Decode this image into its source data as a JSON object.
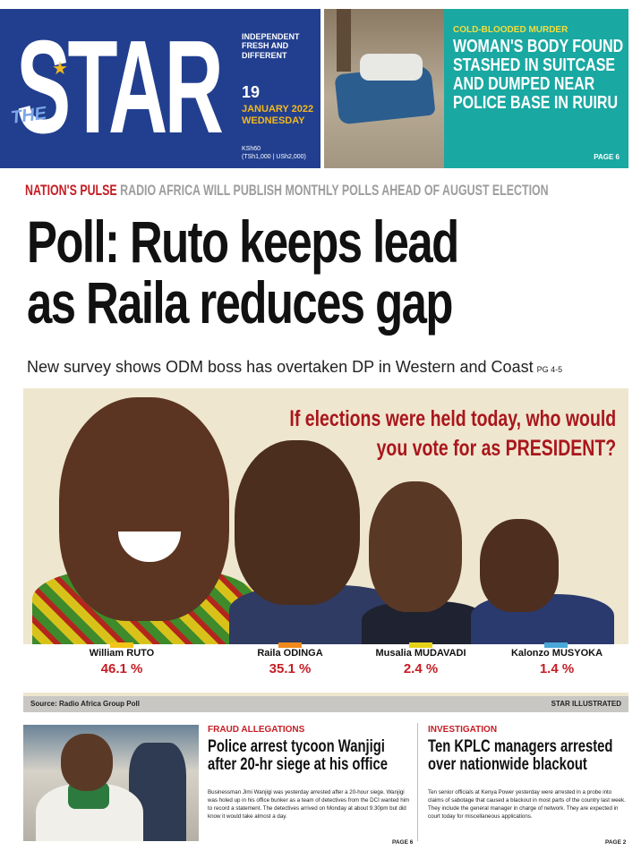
{
  "masthead": {
    "logo_the": "THE",
    "logo_star": "STAR",
    "tagline": "INDEPENDENT FRESH AND DIFFERENT",
    "date_day": "19",
    "date_month": "JANUARY 2022",
    "date_weekday": "WEDNESDAY",
    "price_ksh": "KSh60",
    "price_other": "(TSh1,000 | USh2,000)"
  },
  "teaser": {
    "kicker": "COLD-BLOODED MURDER",
    "headline": "WOMAN'S BODY FOUND STASHED IN SUITCASE AND DUMPED NEAR POLICE BASE IN RUIRU",
    "page": "PAGE 6"
  },
  "main": {
    "kicker_label": "NATION'S PULSE",
    "kicker_text": "RADIO AFRICA WILL PUBLISH MONTHLY POLLS AHEAD OF AUGUST ELECTION",
    "headline_line1": "Poll: Ruto keeps lead",
    "headline_line2": "as Raila reduces gap",
    "subhead": "New survey shows ODM boss has overtaken DP in Western and Coast",
    "subhead_page": "PG 4-5"
  },
  "poll": {
    "question_line1": "If elections were held today, who would",
    "question_line2": "you vote for as PRESIDENT?",
    "candidates": [
      {
        "name": "William RUTO",
        "percent": "46.1 %",
        "color": "#f2c518"
      },
      {
        "name": "Raila ODINGA",
        "percent": "35.1 %",
        "color": "#f08a1c"
      },
      {
        "name": "Musalia MUDAVADI",
        "percent": "2.4 %",
        "color": "#e6d319"
      },
      {
        "name": "Kalonzo MUSYOKA",
        "percent": "1.4 %",
        "color": "#4aa8d8"
      }
    ],
    "source": "Source: Radio Africa Group Poll",
    "credit": "STAR ILLUSTRATED"
  },
  "story_left": {
    "kicker": "FRAUD ALLEGATIONS",
    "headline": "Police arrest tycoon Wanjigi after 20-hr siege at his office",
    "body": "Businessman Jimi Wanjigi was yesterday arrested after a 20-hour siege. Wanjigi was holed up in his office bunker as a team of detectives from the DCI wanted him to record a statement. The detectives arrived on Monday at about 9.30pm but did know it would take almost a day.",
    "page": "PAGE 6"
  },
  "story_right": {
    "kicker": "INVESTIGATION",
    "headline": "Ten KPLC managers arrested over nationwide blackout",
    "body": "Ten senior officials at Kenya Power yesterday were arrested in a probe into claims of sabotage that caused a blackout in most parts of the country last week. They include the general manager in charge of network. They are expected in court today for miscellaneous applications.",
    "page": "PAGE 2"
  },
  "colors": {
    "brand_blue": "#223f8f",
    "accent_red": "#c51d24",
    "teaser_teal": "#1aa8a2",
    "accent_yellow": "#f2b81d"
  }
}
